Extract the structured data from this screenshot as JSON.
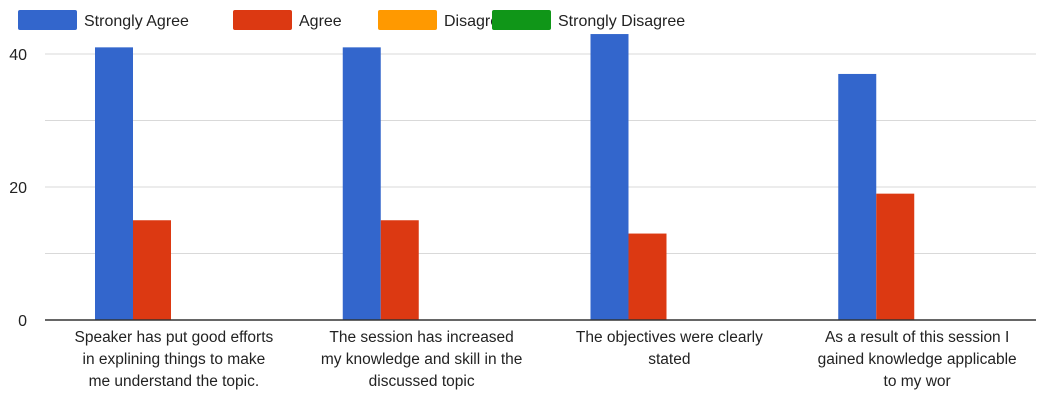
{
  "chart_data": {
    "type": "bar",
    "categories": [
      [
        "Speaker has put good efforts",
        "in explining things to make",
        "me understand the topic."
      ],
      [
        "The session has increased",
        "my knowledge and skill in the",
        "discussed topic"
      ],
      [
        "The objectives were clearly",
        "stated"
      ],
      [
        "As a result of this session I",
        "gained knowledge applicable",
        "to my wor"
      ]
    ],
    "series": [
      {
        "name": "Strongly Agree",
        "color": "#3366cc",
        "values": [
          41,
          41,
          43,
          37
        ]
      },
      {
        "name": "Agree",
        "color": "#dc3912",
        "values": [
          15,
          15,
          13,
          19
        ]
      },
      {
        "name": "Disagree",
        "color": "#ff9900",
        "values": [
          0,
          0,
          0,
          0
        ]
      },
      {
        "name": "Strongly Disagree",
        "color": "#109618",
        "values": [
          0,
          0,
          0,
          0
        ]
      }
    ],
    "yticks": [
      "0",
      "20",
      "40"
    ],
    "ylim": [
      0,
      43
    ],
    "grid": true,
    "legend": "top-left"
  }
}
